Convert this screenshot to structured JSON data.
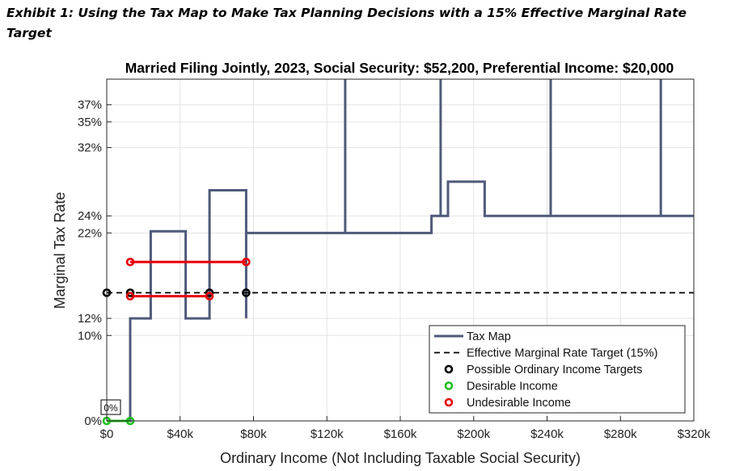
{
  "exhibit_title": "Exhibit 1: Using the Tax Map to Make Tax Planning Decisions with a 15% Effective Marginal Rate Target",
  "chart_data": {
    "type": "line",
    "title": "Married Filing Jointly, 2023, Social Security: $52,200, Preferential Income: $20,000",
    "xlabel": "Ordinary Income (Not Including Taxable Social Security)",
    "ylabel": "Marginal Tax Rate",
    "xlim": [
      0,
      320000
    ],
    "ylim": [
      0,
      40
    ],
    "x_ticks": [
      {
        "value": 0,
        "label": "$0"
      },
      {
        "value": 40000,
        "label": "$40k"
      },
      {
        "value": 80000,
        "label": "$80k"
      },
      {
        "value": 120000,
        "label": "$120k"
      },
      {
        "value": 160000,
        "label": "$160k"
      },
      {
        "value": 200000,
        "label": "$200k"
      },
      {
        "value": 240000,
        "label": "$240k"
      },
      {
        "value": 280000,
        "label": "$280k"
      },
      {
        "value": 320000,
        "label": "$320k"
      }
    ],
    "y_ticks": [
      {
        "value": 0,
        "label": "0%"
      },
      {
        "value": 10,
        "label": "10%"
      },
      {
        "value": 12,
        "label": "12%"
      },
      {
        "value": 22,
        "label": "22%"
      },
      {
        "value": 24,
        "label": "24%"
      },
      {
        "value": 32,
        "label": "32%"
      },
      {
        "value": 35,
        "label": "35%"
      },
      {
        "value": 37,
        "label": "37%"
      }
    ],
    "grid": true,
    "legend_position": "bottom-right",
    "series": [
      {
        "name": "Tax Map",
        "style": "solid",
        "color": "#4f5a7a",
        "points": [
          [
            0,
            0
          ],
          [
            12800,
            0
          ],
          [
            12800,
            12
          ],
          [
            24000,
            12
          ],
          [
            24000,
            22.2
          ],
          [
            43000,
            22.2
          ],
          [
            43000,
            12
          ],
          [
            56000,
            12
          ],
          [
            56000,
            27
          ],
          [
            76000,
            27
          ],
          [
            76000,
            12
          ],
          [
            76000,
            22
          ],
          [
            130000,
            22
          ],
          [
            130000,
            44
          ],
          [
            130000,
            22
          ],
          [
            177000,
            22
          ],
          [
            177000,
            24
          ],
          [
            182000,
            24
          ],
          [
            182000,
            44
          ],
          [
            182000,
            24
          ],
          [
            186000,
            24
          ],
          [
            186000,
            28
          ],
          [
            206000,
            28
          ],
          [
            206000,
            24
          ],
          [
            242000,
            24
          ],
          [
            242000,
            44
          ],
          [
            242000,
            24
          ],
          [
            302000,
            24
          ],
          [
            302000,
            44
          ],
          [
            302000,
            24
          ],
          [
            320000,
            24
          ]
        ]
      },
      {
        "name": "Effective Marginal Rate Target (15%)",
        "style": "dashed",
        "color": "#000000",
        "points": [
          [
            0,
            15
          ],
          [
            320000,
            15
          ]
        ]
      }
    ],
    "segments": [
      {
        "type": "undesirable",
        "color": "#e8000b",
        "from": [
          12800,
          18.6
        ],
        "to": [
          76000,
          18.6
        ]
      },
      {
        "type": "undesirable",
        "color": "#e8000b",
        "from": [
          12800,
          14.6
        ],
        "to": [
          56000,
          14.6
        ]
      },
      {
        "type": "desirable",
        "color": "#1fbf1f",
        "from": [
          0,
          0
        ],
        "to": [
          12800,
          0
        ]
      }
    ],
    "markers": [
      {
        "type": "possible",
        "color": "#000000",
        "x": 0,
        "y": 15
      },
      {
        "type": "possible",
        "color": "#000000",
        "x": 12800,
        "y": 15
      },
      {
        "type": "possible",
        "color": "#000000",
        "x": 56000,
        "y": 15
      },
      {
        "type": "possible",
        "color": "#000000",
        "x": 76000,
        "y": 15
      },
      {
        "type": "desirable",
        "color": "#1fbf1f",
        "x": 0,
        "y": 0
      },
      {
        "type": "desirable",
        "color": "#1fbf1f",
        "x": 12800,
        "y": 0
      },
      {
        "type": "undesirable",
        "color": "#e8000b",
        "x": 12800,
        "y": 18.6
      },
      {
        "type": "undesirable",
        "color": "#e8000b",
        "x": 76000,
        "y": 18.6
      },
      {
        "type": "undesirable",
        "color": "#e8000b",
        "x": 12800,
        "y": 14.6
      },
      {
        "type": "undesirable",
        "color": "#e8000b",
        "x": 56000,
        "y": 14.6
      }
    ],
    "annotations": [
      {
        "label": "0%",
        "x": 0,
        "y": 0
      }
    ],
    "legend": [
      {
        "label": "Tax Map",
        "kind": "line",
        "color": "#4f5a7a"
      },
      {
        "label": "Effective Marginal Rate Target (15%)",
        "kind": "dashed",
        "color": "#000000"
      },
      {
        "label": "Possible Ordinary Income Targets",
        "kind": "marker",
        "color": "#000000"
      },
      {
        "label": "Desirable Income",
        "kind": "marker",
        "color": "#1fbf1f"
      },
      {
        "label": "Undesirable Income",
        "kind": "marker",
        "color": "#e8000b"
      }
    ]
  }
}
